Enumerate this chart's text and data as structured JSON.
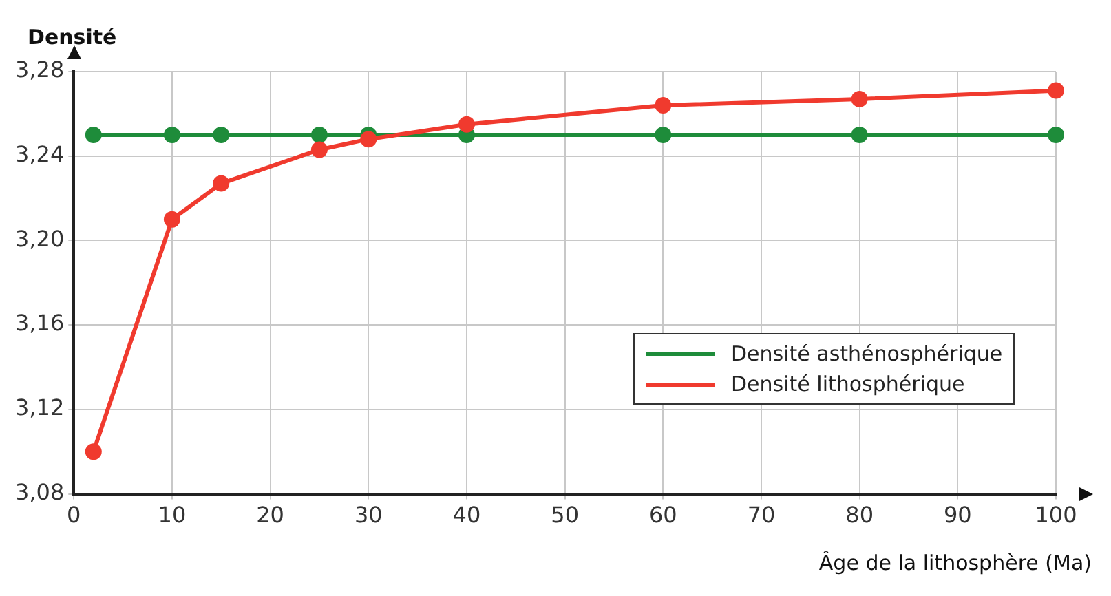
{
  "chart_data": {
    "type": "line",
    "xlabel": "Âge de la lithosphère (Ma)",
    "ylabel": "Densité",
    "xlim": [
      0,
      100
    ],
    "xticks": [
      0,
      10,
      20,
      30,
      40,
      50,
      60,
      70,
      80,
      90,
      100
    ],
    "ylim": [
      3.08,
      3.28
    ],
    "yticks": [
      {
        "value": 3.08,
        "label": "3,08"
      },
      {
        "value": 3.12,
        "label": "3,12"
      },
      {
        "value": 3.16,
        "label": "3,16"
      },
      {
        "value": 3.2,
        "label": "3,20"
      },
      {
        "value": 3.24,
        "label": "3,24"
      },
      {
        "value": 3.28,
        "label": "3,28"
      }
    ],
    "grid": true,
    "legend": "bottom right",
    "marker": "circle",
    "line_style": "solid",
    "series": [
      {
        "name": "Densité asthénosphérique",
        "color": "#1e8c3a",
        "x": [
          2,
          10,
          15,
          25,
          30,
          40,
          60,
          80,
          100
        ],
        "values": [
          3.25,
          3.25,
          3.25,
          3.25,
          3.25,
          3.25,
          3.25,
          3.25,
          3.25
        ]
      },
      {
        "name": "Densité lithosphérique",
        "color": "#f03a2e",
        "x": [
          2,
          10,
          15,
          25,
          30,
          40,
          60,
          80,
          100
        ],
        "values": [
          3.1,
          3.21,
          3.227,
          3.243,
          3.248,
          3.255,
          3.264,
          3.267,
          3.271
        ]
      }
    ]
  }
}
